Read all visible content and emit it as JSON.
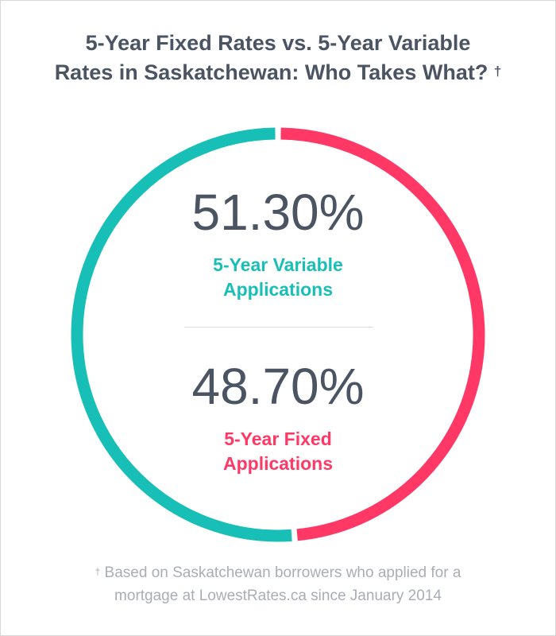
{
  "title": {
    "line1": "5-Year Fixed Rates vs. 5-Year Variable",
    "line2": "Rates in Saskatchewan: Who Takes What?",
    "dagger": "†"
  },
  "colors": {
    "variable": "#17bfb6",
    "fixed": "#ff3866",
    "text": "#4a5463",
    "footnote": "#a9aeb6"
  },
  "chart_data": {
    "type": "pie",
    "categories": [
      "5-Year Variable Applications",
      "5-Year Fixed Applications"
    ],
    "values": [
      51.3,
      48.7
    ],
    "value_labels": [
      "51.30%",
      "48.70%"
    ],
    "title": "5-Year Fixed Rates vs. 5-Year Variable Rates in Saskatchewan: Who Takes What? †"
  },
  "stats": {
    "variable": {
      "value": "51.30%",
      "label_line1": "5-Year Variable",
      "label_line2": "Applications"
    },
    "fixed": {
      "value": "48.70%",
      "label_line1": "5-Year Fixed",
      "label_line2": "Applications"
    }
  },
  "footnote": {
    "dagger": "†",
    "line1": "Based on Saskatchewan borrowers who applied for a",
    "line2": "mortgage at LowestRates.ca since January 2014"
  }
}
